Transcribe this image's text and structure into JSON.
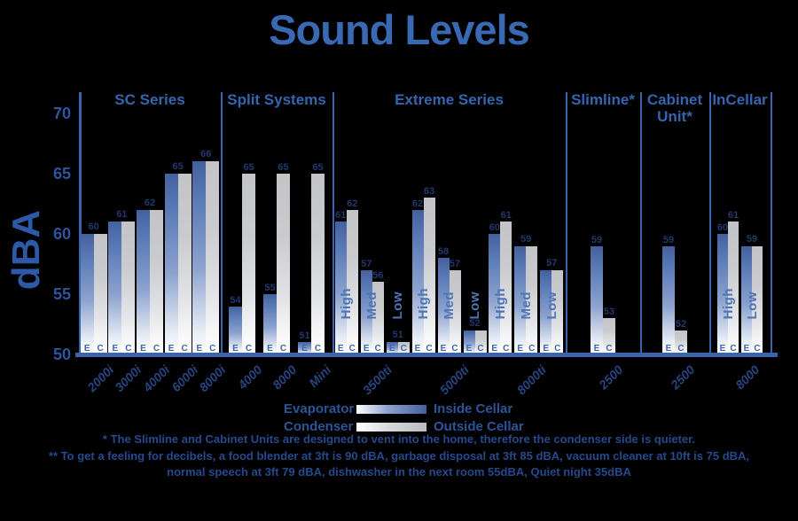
{
  "title": "Sound Levels",
  "y_axis": {
    "label": "dBA",
    "ticks": [
      70,
      65,
      60,
      55,
      50
    ]
  },
  "legend": {
    "rows": [
      {
        "series": "Evaporator",
        "location": "Inside Cellar",
        "swatch": "blue-gradient"
      },
      {
        "series": "Condenser",
        "location": "Outside Cellar",
        "swatch": "grey-gradient"
      }
    ]
  },
  "footnotes": [
    "* The Slimline and Cabinet Units are designed to vent into the home, therefore the condenser side is quieter.",
    "** To get a feeling for decibels, a food blender at 3ft is 90 dBA, garbage disposal at 3ft 85 dBA, vacuum cleaner at 10ft is 75 dBA,",
    "normal speech at 3ft 79 dBA, dishwasher in the next room 55dBA,  Quiet night 35dBA"
  ],
  "colors": {
    "accent_blue": "#3465ae",
    "line_blue": "#3a65ad",
    "bar_blue_top": "#44619d",
    "bar_grey_top": "#c2c4c7",
    "value_navy": "#21386b"
  },
  "chart_data": {
    "type": "bar",
    "title": "Sound Levels",
    "ylabel": "dBA",
    "unit": "dBA",
    "ylim": [
      50,
      70
    ],
    "yticks": [
      70,
      65,
      60,
      55,
      50
    ],
    "grid": false,
    "legend_position": "bottom",
    "bar_letters": {
      "e": "E",
      "c": "C"
    },
    "series_names": {
      "e": "Evaporator (Inside Cellar)",
      "c": "Condenser (Outside Cellar)"
    },
    "sections": [
      {
        "name": "SC Series",
        "products": [
          {
            "label": "2000i",
            "groups": [
              {
                "e": 60,
                "c": 60
              }
            ]
          },
          {
            "label": "3000i",
            "groups": [
              {
                "e": 61,
                "c": 61
              }
            ]
          },
          {
            "label": "4000i",
            "groups": [
              {
                "e": 62,
                "c": 62
              }
            ]
          },
          {
            "label": "6000i",
            "groups": [
              {
                "e": 65,
                "c": 65
              }
            ]
          },
          {
            "label": "8000i",
            "groups": [
              {
                "e": 66,
                "c": 66
              }
            ]
          }
        ]
      },
      {
        "name": "Split Systems",
        "products": [
          {
            "label": "4000",
            "groups": [
              {
                "e": 54,
                "c": 65
              }
            ]
          },
          {
            "label": "8000",
            "groups": [
              {
                "e": 55,
                "c": 65
              }
            ]
          },
          {
            "label": "Mini",
            "groups": [
              {
                "e": 51,
                "c": 65
              }
            ]
          }
        ]
      },
      {
        "name": "Extreme Series",
        "products": [
          {
            "label": "3500ti",
            "groups": [
              {
                "setting": "High",
                "e": 61,
                "c": 62
              },
              {
                "setting": "Med",
                "e": 57,
                "c": 56
              },
              {
                "setting": "Low",
                "e": 51,
                "c": 51
              }
            ]
          },
          {
            "label": "5000ti",
            "groups": [
              {
                "setting": "High",
                "e": 62,
                "c": 63
              },
              {
                "setting": "Med",
                "e": 58,
                "c": 57
              },
              {
                "setting": "Low",
                "e": 52,
                "c": 52
              }
            ]
          },
          {
            "label": "8000ti",
            "groups": [
              {
                "setting": "High",
                "e": 60,
                "c": 61
              },
              {
                "setting": "Med",
                "e": 59,
                "c": 59
              },
              {
                "setting": "Low",
                "e": 57,
                "c": 57
              }
            ]
          }
        ]
      },
      {
        "name": "Slimline*",
        "products": [
          {
            "label": "2500",
            "groups": [
              {
                "e": 59,
                "c": 53
              }
            ]
          }
        ]
      },
      {
        "name": "Cabinet Unit*",
        "products": [
          {
            "label": "2500",
            "groups": [
              {
                "e": 59,
                "c": 52
              }
            ]
          }
        ]
      },
      {
        "name": "InCellar",
        "products": [
          {
            "label": "8000",
            "groups": [
              {
                "setting": "High",
                "e": 60,
                "c": 61
              },
              {
                "setting": "Low",
                "e": 59,
                "c": 59
              }
            ]
          }
        ]
      }
    ]
  }
}
